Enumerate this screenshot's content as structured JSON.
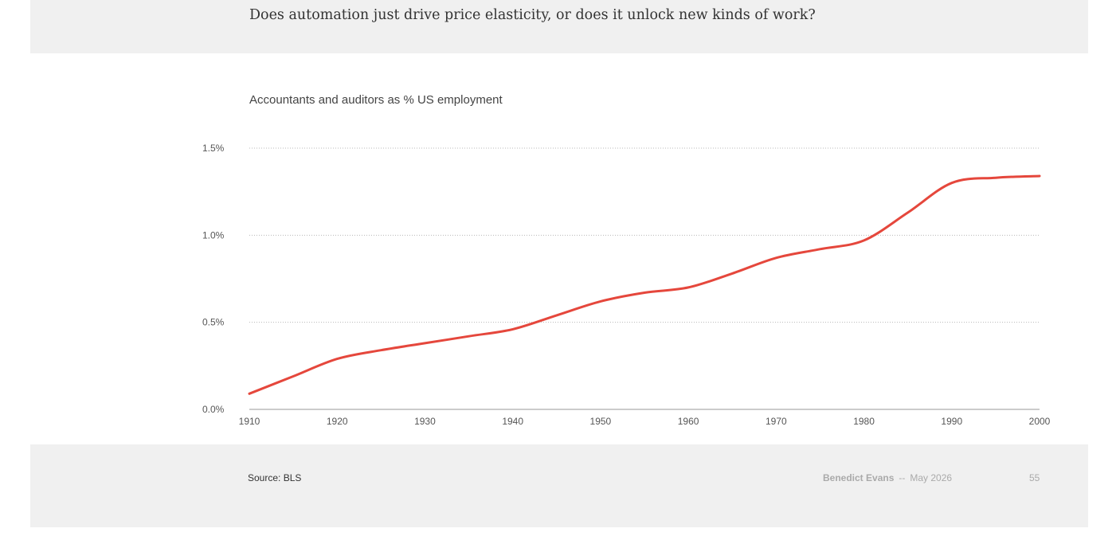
{
  "header": {
    "headline": "Does automation just drive price elasticity, or does it unlock new kinds of work?"
  },
  "chart_data": {
    "type": "line",
    "title": "Accountants and auditors as % US employment",
    "xlabel": "",
    "ylabel": "",
    "x": [
      1910,
      1915,
      1920,
      1925,
      1930,
      1935,
      1940,
      1945,
      1950,
      1955,
      1960,
      1965,
      1970,
      1975,
      1980,
      1985,
      1990,
      1995,
      2000
    ],
    "series": [
      {
        "values": [
          0.09,
          0.19,
          0.29,
          0.34,
          0.38,
          0.42,
          0.46,
          0.54,
          0.62,
          0.67,
          0.7,
          0.78,
          0.87,
          0.92,
          0.97,
          1.13,
          1.3,
          1.33,
          1.34
        ]
      }
    ],
    "ylim": [
      0,
      1.5
    ],
    "xlim": [
      1910,
      2000
    ],
    "y_ticks": [
      {
        "value": 0,
        "label": "0.0%"
      },
      {
        "value": 0.5,
        "label": "0.5%"
      },
      {
        "value": 1.0,
        "label": "1.0%"
      },
      {
        "value": 1.5,
        "label": "1.5%"
      }
    ],
    "x_ticks": [
      {
        "value": 1910,
        "label": "1910"
      },
      {
        "value": 1920,
        "label": "1920"
      },
      {
        "value": 1930,
        "label": "1930"
      },
      {
        "value": 1940,
        "label": "1940"
      },
      {
        "value": 1950,
        "label": "1950"
      },
      {
        "value": 1960,
        "label": "1960"
      },
      {
        "value": 1970,
        "label": "1970"
      },
      {
        "value": 1980,
        "label": "1980"
      },
      {
        "value": 1990,
        "label": "1990"
      },
      {
        "value": 2000,
        "label": "2000"
      }
    ],
    "grid": "horizontal dotted",
    "line_color": "#e5473c"
  },
  "footer": {
    "source": "Source: BLS",
    "author": "Benedict Evans",
    "separator": "--",
    "date": "May 2026",
    "page_number": "55"
  }
}
